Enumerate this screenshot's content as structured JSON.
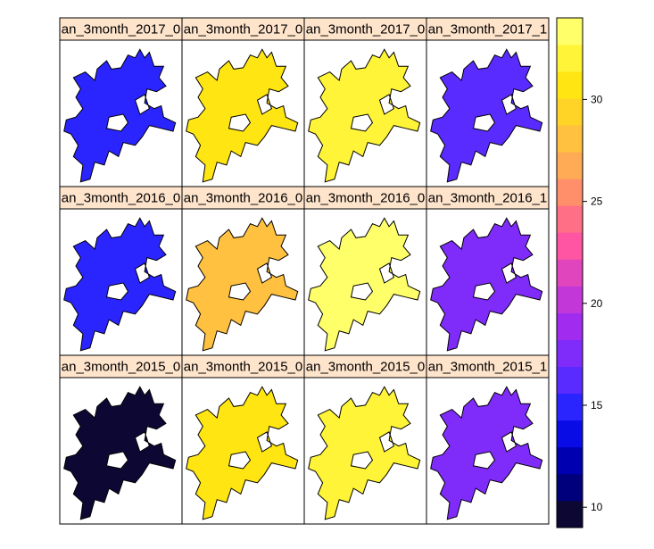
{
  "chart_data": {
    "type": "heatmap",
    "layout": {
      "rows": 3,
      "cols": 4
    },
    "panels": [
      {
        "row": 0,
        "col": 0,
        "strip": "an_3month_2017_0",
        "value": 15.5
      },
      {
        "row": 0,
        "col": 1,
        "strip": "an_3month_2017_0",
        "value": 30.2
      },
      {
        "row": 0,
        "col": 2,
        "strip": "an_3month_2017_0",
        "value": 32.4
      },
      {
        "row": 0,
        "col": 3,
        "strip": "an_3month_2017_1",
        "value": 15.6
      },
      {
        "row": 1,
        "col": 0,
        "strip": "an_3month_2016_0",
        "value": 14.8
      },
      {
        "row": 1,
        "col": 1,
        "strip": "an_3month_2016_0",
        "value": 28.2
      },
      {
        "row": 1,
        "col": 2,
        "strip": "an_3month_2016_0",
        "value": 33.5
      },
      {
        "row": 1,
        "col": 3,
        "strip": "an_3month_2016_1",
        "value": 17.8
      },
      {
        "row": 2,
        "col": 0,
        "strip": "an_3month_2015_0",
        "value": 9.4
      },
      {
        "row": 2,
        "col": 1,
        "strip": "an_3month_2015_0",
        "value": 30.3
      },
      {
        "row": 2,
        "col": 2,
        "strip": "an_3month_2015_0",
        "value": 32.5
      },
      {
        "row": 2,
        "col": 3,
        "strip": "an_3month_2015_1",
        "value": 17.5
      }
    ],
    "colorbar": {
      "range": [
        9,
        34
      ],
      "ticks": [
        10,
        15,
        20,
        25,
        30
      ],
      "colors": [
        "#0d0833",
        "#00007d",
        "#0000b0",
        "#0a0ce6",
        "#2a24ff",
        "#5a2bff",
        "#7f2bfa",
        "#a12bef",
        "#c237d8",
        "#e045bd",
        "#ff55a3",
        "#ff6f86",
        "#ff8f6a",
        "#ffab55",
        "#ffc13f",
        "#ffd427",
        "#ffe512",
        "#fff437",
        "#ffff6a"
      ]
    },
    "strip_color": "#ffe4cc"
  }
}
